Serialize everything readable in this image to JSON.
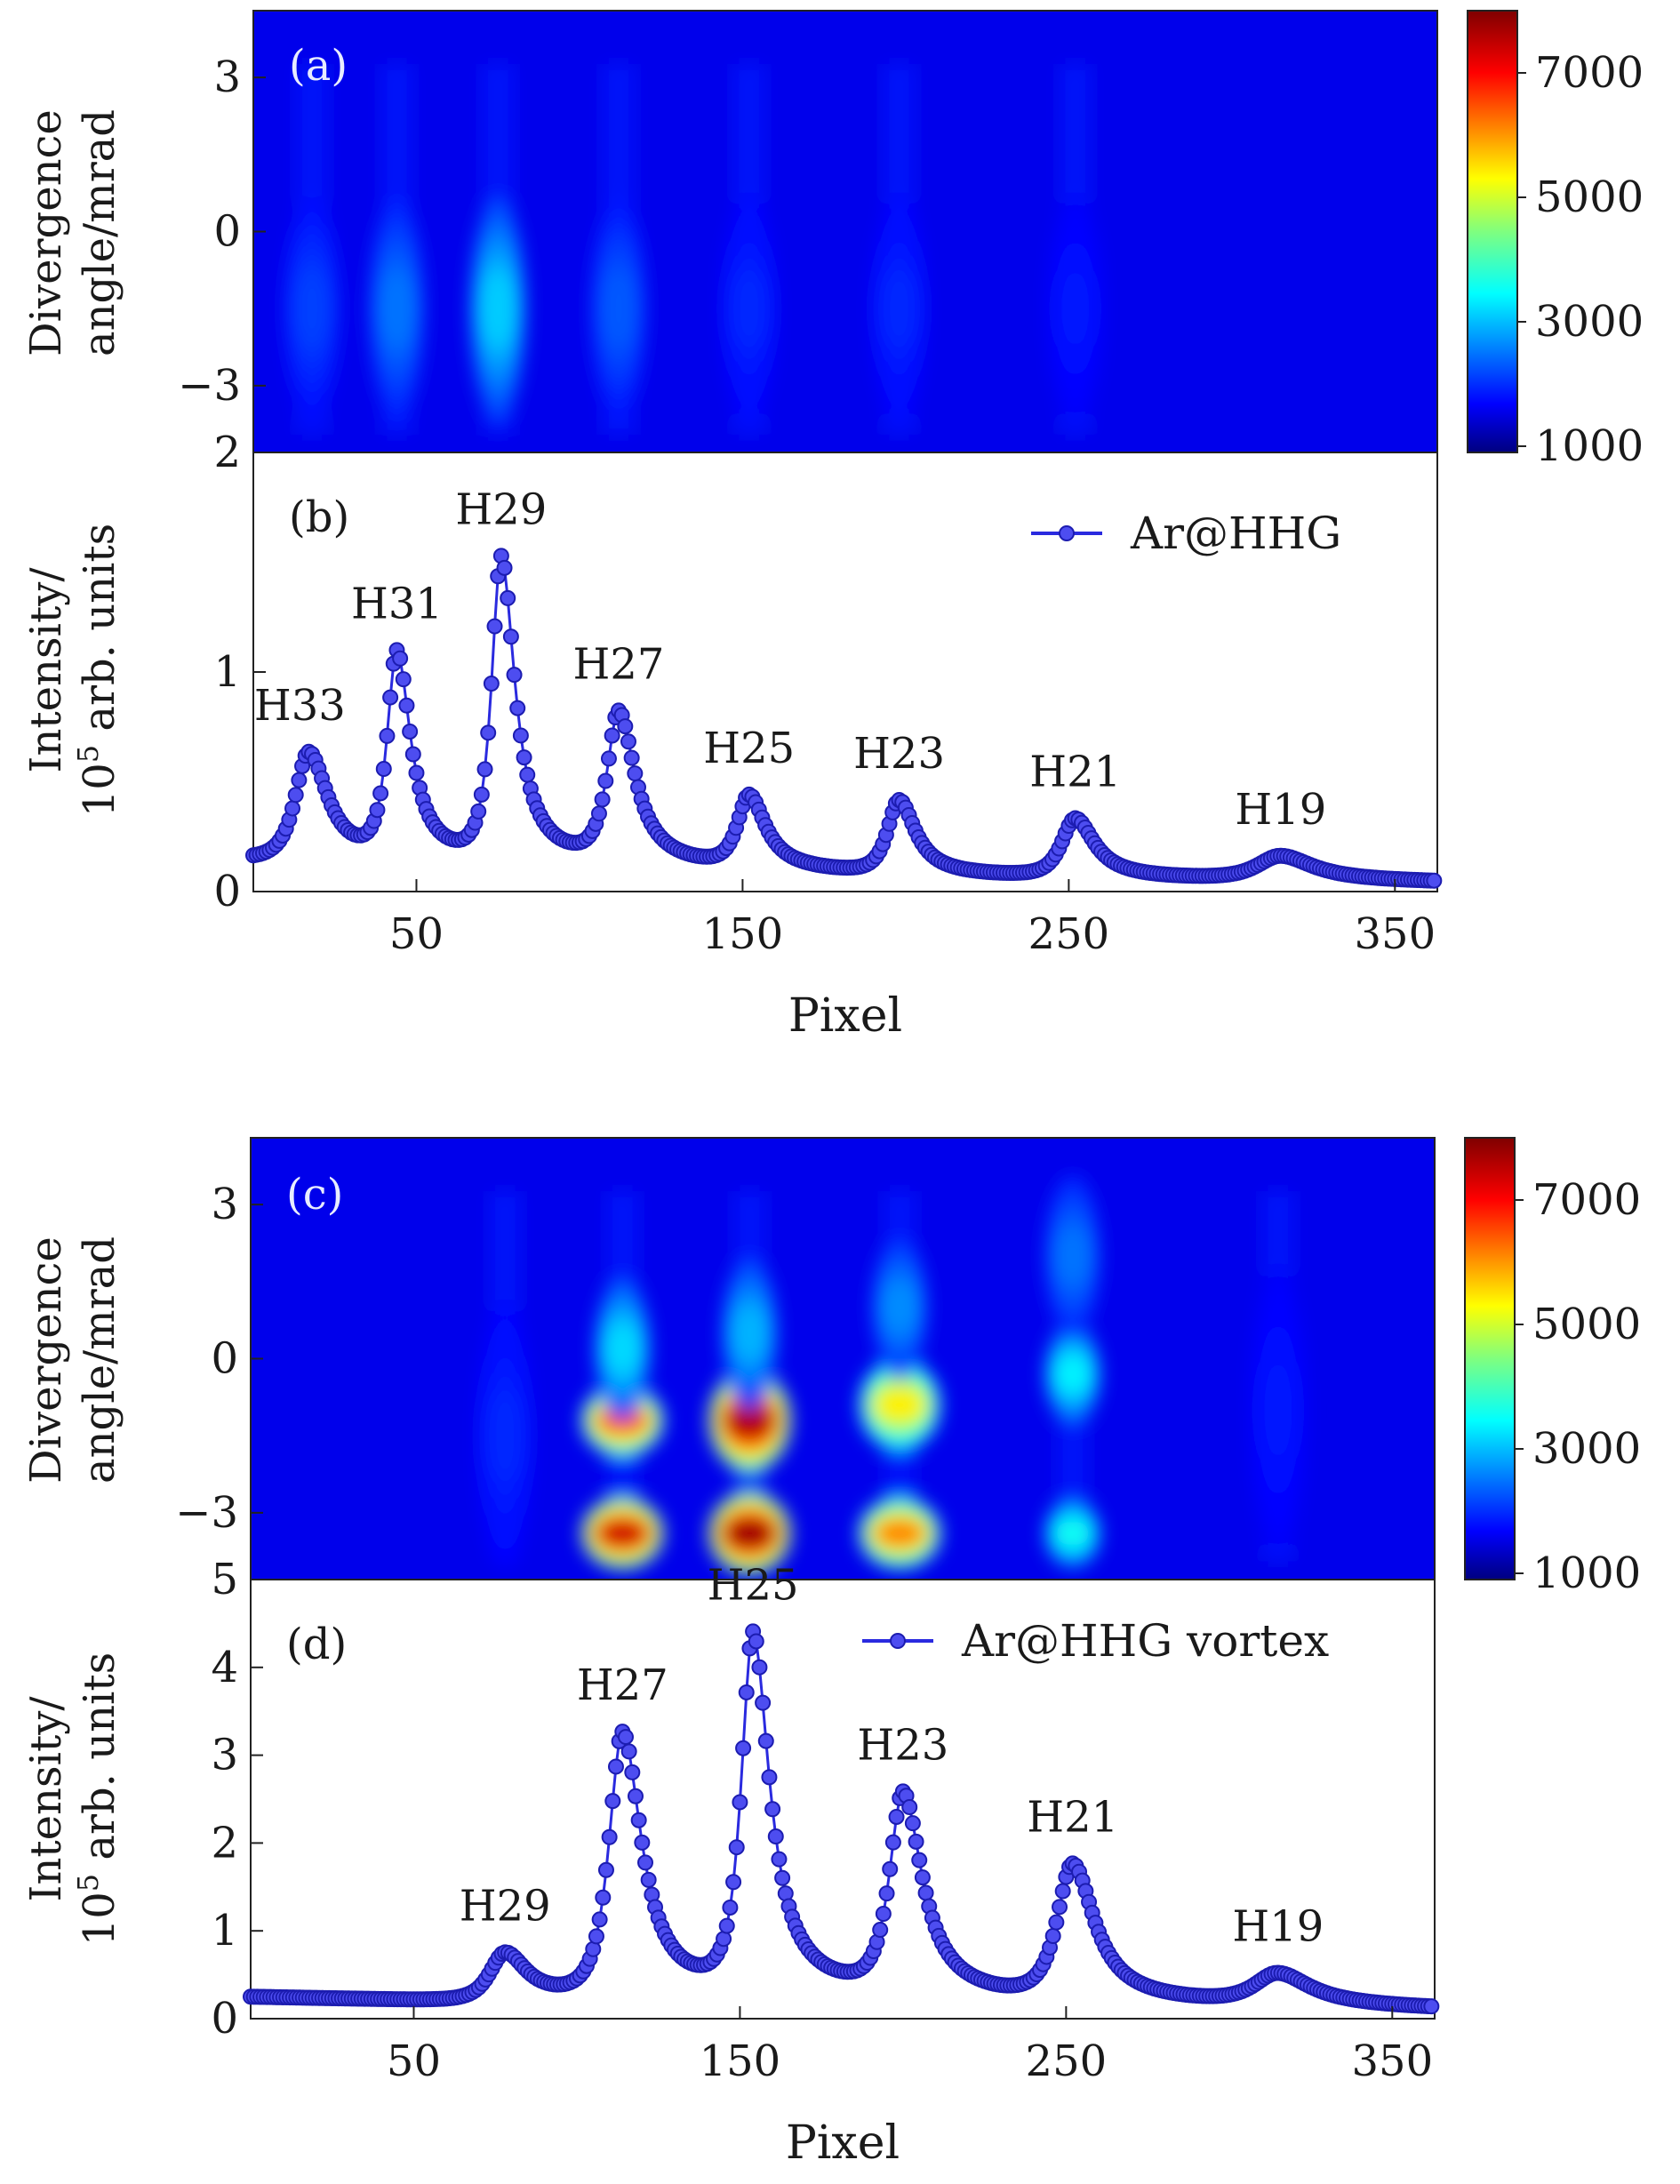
{
  "chart_data": [
    {
      "type": "heatmap",
      "panel_label": "(a)",
      "ylabel_line1": "Divergence",
      "ylabel_line2": "angle/mrad",
      "ylim": [
        -4.3,
        4.3
      ],
      "yticks": [
        3,
        0,
        -3
      ],
      "ytick_labels": [
        "3",
        "0",
        "−3"
      ],
      "xlim": [
        0,
        363
      ],
      "colorbar": {
        "ticks": [
          7000,
          5000,
          3000,
          1000
        ],
        "labels": [
          "7000",
          "5000",
          "3000",
          "1000"
        ],
        "range": [
          900,
          8000
        ],
        "colormap": "jet"
      },
      "background_value": 1650,
      "stripes": [
        {
          "x": 18,
          "lobes": [
            {
              "y": -1.5,
              "peak": 2300,
              "sy": 2.2
            }
          ]
        },
        {
          "x": 44,
          "lobes": [
            {
              "y": -1.5,
              "peak": 2700,
              "sy": 2.2
            }
          ]
        },
        {
          "x": 75,
          "lobes": [
            {
              "y": -1.5,
              "peak": 3400,
              "sy": 2.2
            }
          ]
        },
        {
          "x": 112,
          "lobes": [
            {
              "y": -1.5,
              "peak": 2500,
              "sy": 2.2
            }
          ]
        },
        {
          "x": 152,
          "lobes": [
            {
              "y": -1.5,
              "peak": 2100,
              "sy": 2.2
            }
          ]
        },
        {
          "x": 198,
          "lobes": [
            {
              "y": -1.5,
              "peak": 2100,
              "sy": 2.2
            }
          ]
        },
        {
          "x": 252,
          "lobes": [
            {
              "y": -1.5,
              "peak": 1950,
              "sy": 2.2
            }
          ]
        }
      ]
    },
    {
      "type": "line",
      "panel_label": "(b)",
      "ylabel_line1": "Intensity/",
      "ylabel_line2_pre": "10",
      "ylabel_line2_sup": "5",
      "ylabel_line2_post": " arb. units",
      "xlabel": "Pixel",
      "xlim": [
        0,
        363
      ],
      "ylim": [
        0,
        2
      ],
      "xticks": [
        50,
        150,
        250,
        350
      ],
      "yticks": [
        0,
        1,
        2
      ],
      "series": [
        {
          "name": "Ar@HHG",
          "color": "#2a2adf"
        }
      ],
      "baseline": [
        [
          0,
          0.15
        ],
        [
          30,
          0.14
        ],
        [
          100,
          0.12
        ],
        [
          200,
          0.07
        ],
        [
          363,
          0.04
        ]
      ],
      "peaks": [
        {
          "x": 17,
          "height": 0.5,
          "width": 7,
          "label": "H33"
        },
        {
          "x": 44,
          "height": 0.95,
          "width": 5,
          "label": "H31"
        },
        {
          "x": 76,
          "height": 1.4,
          "width": 5,
          "label": "H29"
        },
        {
          "x": 112,
          "height": 0.69,
          "width": 6,
          "label": "H27"
        },
        {
          "x": 152,
          "height": 0.33,
          "width": 6,
          "label": "H25"
        },
        {
          "x": 198,
          "height": 0.34,
          "width": 6,
          "label": "H23"
        },
        {
          "x": 252,
          "height": 0.27,
          "width": 7,
          "label": "H21"
        },
        {
          "x": 315,
          "height": 0.11,
          "width": 12,
          "label": "H19"
        }
      ]
    },
    {
      "type": "heatmap",
      "panel_label": "(c)",
      "ylabel_line1": "Divergence",
      "ylabel_line2": "angle/mrad",
      "ylim": [
        -4.3,
        4.3
      ],
      "yticks": [
        3,
        0,
        -3
      ],
      "ytick_labels": [
        "3",
        "0",
        "−3"
      ],
      "xlim": [
        0,
        363
      ],
      "colorbar": {
        "ticks": [
          7000,
          5000,
          3000,
          1000
        ],
        "labels": [
          "7000",
          "5000",
          "3000",
          "1000"
        ],
        "range": [
          900,
          8000
        ],
        "colormap": "jet"
      },
      "background_value": 1650,
      "stripes": [
        {
          "x": 78,
          "lobes": [
            {
              "y": -1.5,
              "peak": 2100,
              "sy": 2.6
            }
          ]
        },
        {
          "x": 114,
          "lobes": [
            {
              "y": -3.4,
              "peak": 8200,
              "sy": 0.7
            },
            {
              "y": -1.2,
              "peak": 7200,
              "sy": 0.7
            },
            {
              "y": 0.2,
              "peak": 3500,
              "sy": 1.4
            }
          ]
        },
        {
          "x": 153,
          "lobes": [
            {
              "y": -3.4,
              "peak": 8600,
              "sy": 0.8
            },
            {
              "y": -1.2,
              "peak": 8400,
              "sy": 1.0
            },
            {
              "y": 0.5,
              "peak": 3200,
              "sy": 1.5
            }
          ]
        },
        {
          "x": 199,
          "lobes": [
            {
              "y": -3.4,
              "peak": 6800,
              "sy": 0.7
            },
            {
              "y": -0.9,
              "peak": 5900,
              "sy": 0.9
            },
            {
              "y": 1.0,
              "peak": 2900,
              "sy": 1.4
            }
          ]
        },
        {
          "x": 252,
          "lobes": [
            {
              "y": -3.4,
              "peak": 3900,
              "sy": 0.7
            },
            {
              "y": -0.3,
              "peak": 3700,
              "sy": 1.0
            },
            {
              "y": 2.0,
              "peak": 2700,
              "sy": 1.6
            }
          ]
        },
        {
          "x": 315,
          "lobes": [
            {
              "y": -1.0,
              "peak": 1950,
              "sy": 2.8
            }
          ]
        }
      ]
    },
    {
      "type": "line",
      "panel_label": "(d)",
      "ylabel_line1": "Intensity/",
      "ylabel_line2_pre": "10",
      "ylabel_line2_sup": "5",
      "ylabel_line2_post": " arb. units",
      "xlabel": "Pixel",
      "xlim": [
        0,
        363
      ],
      "ylim": [
        0,
        5
      ],
      "xticks": [
        50,
        150,
        250,
        350
      ],
      "yticks": [
        0,
        1,
        2,
        3,
        4,
        5
      ],
      "series": [
        {
          "name": "Ar@HHG vortex",
          "color": "#2a2adf"
        }
      ],
      "baseline": [
        [
          0,
          0.25
        ],
        [
          70,
          0.2
        ],
        [
          160,
          0.3
        ],
        [
          230,
          0.2
        ],
        [
          363,
          0.1
        ]
      ],
      "peaks": [
        {
          "x": 78,
          "height": 0.55,
          "width": 8,
          "label": "H29"
        },
        {
          "x": 114,
          "height": 3.05,
          "width": 7,
          "label": "H27"
        },
        {
          "x": 154,
          "height": 4.1,
          "width": 6,
          "label": "H25"
        },
        {
          "x": 200,
          "height": 2.3,
          "width": 7,
          "label": "H23"
        },
        {
          "x": 252,
          "height": 1.55,
          "width": 8,
          "label": "H21"
        },
        {
          "x": 315,
          "height": 0.35,
          "width": 12,
          "label": "H19"
        }
      ]
    }
  ]
}
